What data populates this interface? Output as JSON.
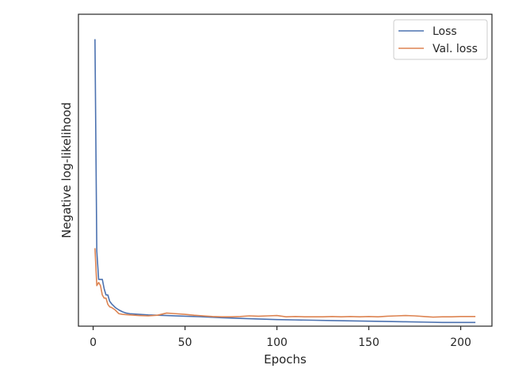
{
  "chart_data": {
    "type": "line",
    "xlabel": "Epochs",
    "ylabel": "Negative log-likelihood",
    "xlim": [
      -8,
      217
    ],
    "ylim": [
      0,
      10
    ],
    "x_ticks": [
      0,
      50,
      100,
      150,
      200
    ],
    "y_ticks_shown": false,
    "grid": false,
    "legend_position": "top-right",
    "series": [
      {
        "name": "Loss",
        "color": "#4c72b0",
        "points": [
          [
            1,
            9.2
          ],
          [
            2,
            2.4
          ],
          [
            3,
            1.5
          ],
          [
            4,
            1.5
          ],
          [
            5,
            1.5
          ],
          [
            6,
            1.2
          ],
          [
            7,
            1.0
          ],
          [
            8,
            1.0
          ],
          [
            9,
            0.8
          ],
          [
            10,
            0.72
          ],
          [
            12,
            0.6
          ],
          [
            14,
            0.52
          ],
          [
            16,
            0.46
          ],
          [
            18,
            0.42
          ],
          [
            20,
            0.4
          ],
          [
            25,
            0.38
          ],
          [
            30,
            0.36
          ],
          [
            35,
            0.35
          ],
          [
            40,
            0.34
          ],
          [
            50,
            0.32
          ],
          [
            60,
            0.3
          ],
          [
            70,
            0.27
          ],
          [
            80,
            0.25
          ],
          [
            90,
            0.23
          ],
          [
            100,
            0.21
          ],
          [
            110,
            0.2
          ],
          [
            120,
            0.19
          ],
          [
            130,
            0.18
          ],
          [
            140,
            0.17
          ],
          [
            150,
            0.16
          ],
          [
            160,
            0.15
          ],
          [
            170,
            0.14
          ],
          [
            180,
            0.13
          ],
          [
            190,
            0.12
          ],
          [
            200,
            0.12
          ],
          [
            208,
            0.12
          ]
        ]
      },
      {
        "name": "Val. loss",
        "color": "#dd8452",
        "points": [
          [
            1,
            2.5
          ],
          [
            2,
            1.3
          ],
          [
            3,
            1.4
          ],
          [
            4,
            1.3
          ],
          [
            5,
            1.0
          ],
          [
            6,
            0.9
          ],
          [
            7,
            0.9
          ],
          [
            8,
            0.7
          ],
          [
            9,
            0.62
          ],
          [
            10,
            0.6
          ],
          [
            12,
            0.52
          ],
          [
            14,
            0.4
          ],
          [
            16,
            0.38
          ],
          [
            18,
            0.37
          ],
          [
            20,
            0.36
          ],
          [
            25,
            0.34
          ],
          [
            30,
            0.33
          ],
          [
            35,
            0.35
          ],
          [
            40,
            0.42
          ],
          [
            45,
            0.4
          ],
          [
            50,
            0.38
          ],
          [
            55,
            0.35
          ],
          [
            60,
            0.33
          ],
          [
            65,
            0.31
          ],
          [
            70,
            0.3
          ],
          [
            75,
            0.3
          ],
          [
            80,
            0.31
          ],
          [
            85,
            0.33
          ],
          [
            90,
            0.32
          ],
          [
            95,
            0.33
          ],
          [
            100,
            0.34
          ],
          [
            105,
            0.3
          ],
          [
            110,
            0.31
          ],
          [
            115,
            0.3
          ],
          [
            120,
            0.3
          ],
          [
            125,
            0.3
          ],
          [
            130,
            0.31
          ],
          [
            135,
            0.3
          ],
          [
            140,
            0.31
          ],
          [
            145,
            0.3
          ],
          [
            150,
            0.31
          ],
          [
            155,
            0.3
          ],
          [
            160,
            0.32
          ],
          [
            165,
            0.33
          ],
          [
            170,
            0.34
          ],
          [
            175,
            0.33
          ],
          [
            180,
            0.31
          ],
          [
            185,
            0.29
          ],
          [
            190,
            0.3
          ],
          [
            195,
            0.3
          ],
          [
            200,
            0.31
          ],
          [
            205,
            0.31
          ],
          [
            208,
            0.31
          ]
        ]
      }
    ]
  }
}
